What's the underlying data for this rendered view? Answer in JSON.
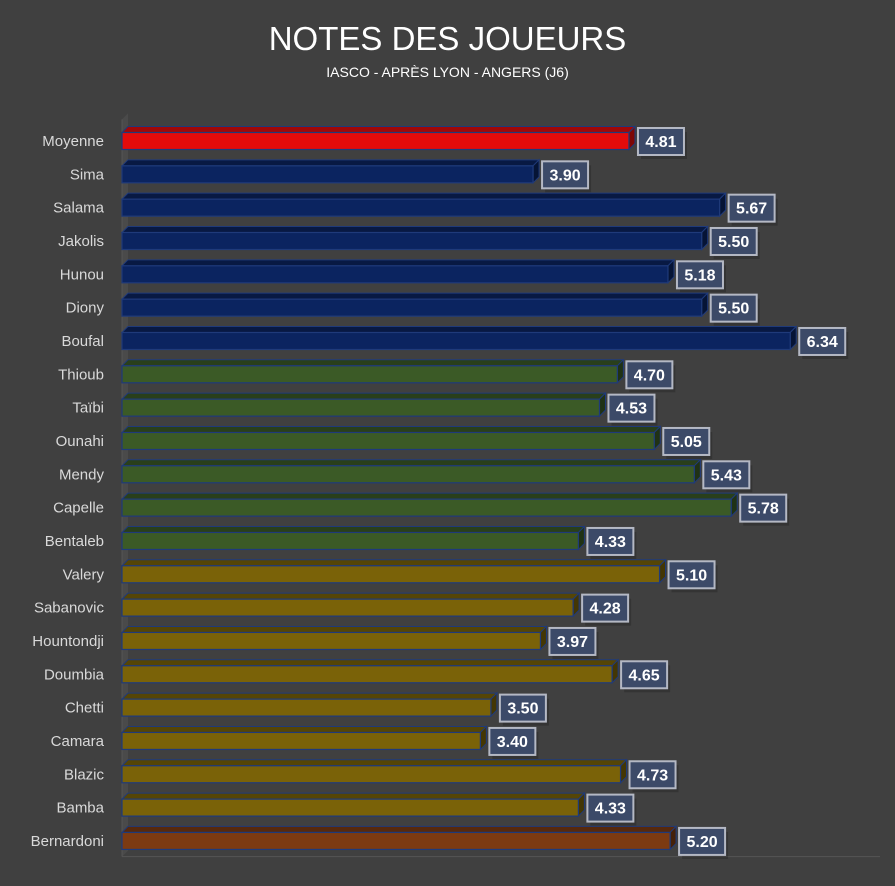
{
  "chart_data": {
    "type": "bar",
    "orientation": "horizontal",
    "title": "NOTES DES JOUEURS",
    "subtitle": "IASCO - APRÈS  LYON - ANGERS (J6)",
    "xlabel": "",
    "ylabel": "",
    "xlim": [
      0,
      7
    ],
    "grid": false,
    "categories": [
      "Moyenne",
      "Sima",
      "Salama",
      "Jakolis",
      "Hunou",
      "Diony",
      "Boufal",
      "Thioub",
      "Taïbi",
      "Ounahi",
      "Mendy",
      "Capelle",
      "Bentaleb",
      "Valery",
      "Sabanovic",
      "Hountondji",
      "Doumbia",
      "Chetti",
      "Camara",
      "Blazic",
      "Bamba",
      "Bernardoni"
    ],
    "values": [
      4.81,
      3.9,
      5.67,
      5.5,
      5.18,
      5.5,
      6.34,
      4.7,
      4.53,
      5.05,
      5.43,
      5.78,
      4.33,
      5.1,
      4.28,
      3.97,
      4.65,
      3.5,
      3.4,
      4.73,
      4.33,
      5.2
    ],
    "labels": [
      "4.81",
      "3.90",
      "5.67",
      "5.50",
      "5.18",
      "5.50",
      "6.34",
      "4.70",
      "4.53",
      "5.05",
      "5.43",
      "5.78",
      "4.33",
      "5.10",
      "4.28",
      "3.97",
      "4.65",
      "3.50",
      "3.40",
      "4.73",
      "4.33",
      "5.20"
    ],
    "groups": [
      "average",
      "attack",
      "attack",
      "attack",
      "attack",
      "attack",
      "attack",
      "midfield",
      "midfield",
      "midfield",
      "midfield",
      "midfield",
      "midfield",
      "defense",
      "defense",
      "defense",
      "defense",
      "defense",
      "defense",
      "defense",
      "defense",
      "goalkeeper"
    ],
    "group_colors": {
      "average": "#e40b0b",
      "attack": "#0b2460",
      "midfield": "#3b5a26",
      "defense": "#7a6208",
      "goalkeeper": "#7c3a12"
    }
  }
}
